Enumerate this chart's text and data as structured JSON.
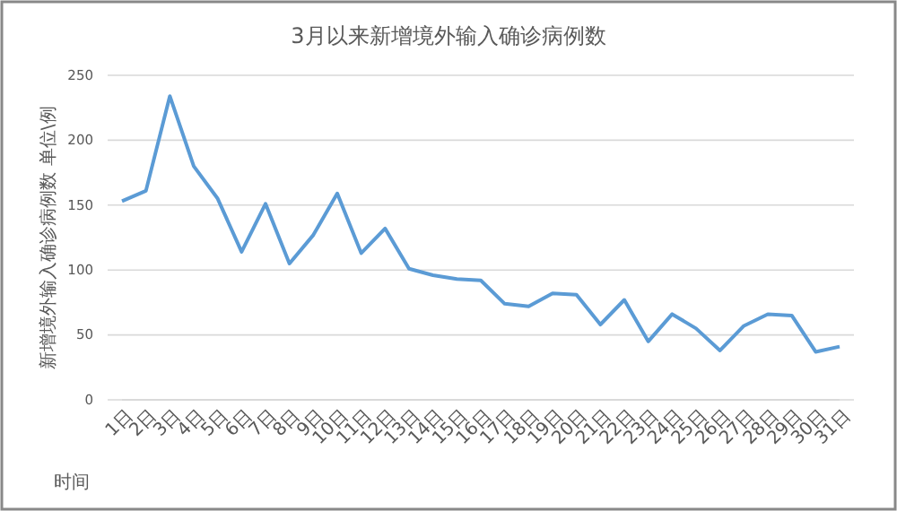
{
  "chart_data": {
    "type": "line",
    "title": "3月以来新增境外输入确诊病例数",
    "xlabel": "时间",
    "ylabel": "新增境外输入确诊病例数 单位\\例",
    "categories": [
      "1日",
      "2日",
      "3日",
      "4日",
      "5日",
      "6日",
      "7日",
      "8日",
      "9日",
      "10日",
      "11日",
      "12日",
      "13日",
      "14日",
      "15日",
      "16日",
      "17日",
      "18日",
      "19日",
      "20日",
      "21日",
      "22日",
      "23日",
      "24日",
      "25日",
      "26日",
      "27日",
      "28日",
      "29日",
      "30日",
      "31日"
    ],
    "series": [
      {
        "color": "#5b9bd5",
        "values": [
          153,
          161,
          234,
          180,
          155,
          114,
          151,
          105,
          127,
          159,
          113,
          132,
          101,
          96,
          93,
          92,
          74,
          72,
          82,
          81,
          58,
          77,
          45,
          66,
          55,
          38,
          57,
          66,
          65,
          37,
          41
        ]
      }
    ],
    "ylim": [
      0,
      250
    ],
    "yticks": [
      0,
      50,
      100,
      150,
      200,
      250
    ],
    "grid": "y",
    "marker": "none",
    "line_style": "solid"
  }
}
